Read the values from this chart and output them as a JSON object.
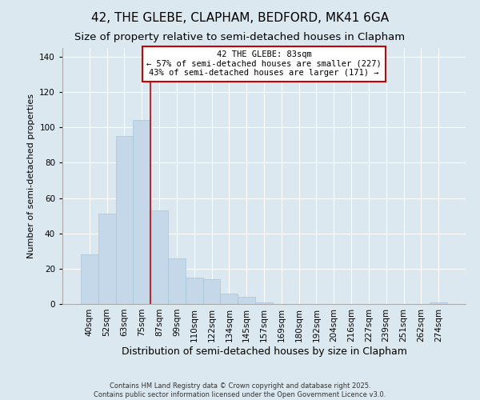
{
  "title": "42, THE GLEBE, CLAPHAM, BEDFORD, MK41 6GA",
  "subtitle": "Size of property relative to semi-detached houses in Clapham",
  "xlabel": "Distribution of semi-detached houses by size in Clapham",
  "ylabel": "Number of semi-detached properties",
  "bin_labels": [
    "40sqm",
    "52sqm",
    "63sqm",
    "75sqm",
    "87sqm",
    "99sqm",
    "110sqm",
    "122sqm",
    "134sqm",
    "145sqm",
    "157sqm",
    "169sqm",
    "180sqm",
    "192sqm",
    "204sqm",
    "216sqm",
    "227sqm",
    "239sqm",
    "251sqm",
    "262sqm",
    "274sqm"
  ],
  "bar_values": [
    28,
    51,
    95,
    104,
    53,
    26,
    15,
    14,
    6,
    4,
    1,
    0,
    0,
    0,
    0,
    0,
    0,
    0,
    0,
    0,
    1
  ],
  "bar_color": "#c5d8ea",
  "bar_edge_color": "#a8c4d8",
  "ylim": [
    0,
    145
  ],
  "yticks": [
    0,
    20,
    40,
    60,
    80,
    100,
    120,
    140
  ],
  "vline_bin_index": 4,
  "vline_color": "#cc0000",
  "annotation_text": "42 THE GLEBE: 83sqm\n← 57% of semi-detached houses are smaller (227)\n43% of semi-detached houses are larger (171) →",
  "annotation_box_color": "#ffffff",
  "annotation_box_edgecolor": "#cc0000",
  "footer_line1": "Contains HM Land Registry data © Crown copyright and database right 2025.",
  "footer_line2": "Contains public sector information licensed under the Open Government Licence v3.0.",
  "bg_color": "#dce8f0",
  "grid_color": "#ffffff",
  "title_fontsize": 11,
  "subtitle_fontsize": 9.5,
  "xlabel_fontsize": 9,
  "ylabel_fontsize": 8,
  "tick_fontsize": 7.5,
  "footer_fontsize": 6,
  "annotation_fontsize": 7.5
}
